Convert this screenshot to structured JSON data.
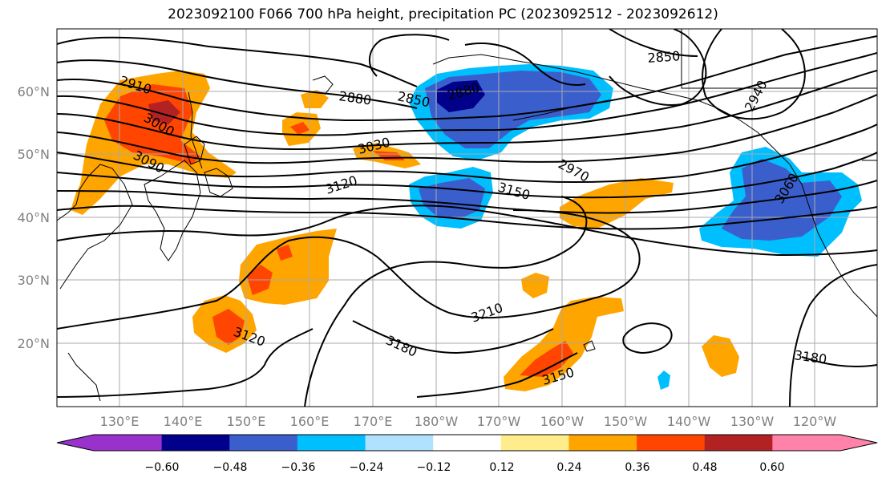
{
  "title": "2023092100 F066 700 hPa height, precipitation PC (2023092512 - 2023092612)",
  "lat_labels": [
    "60°N",
    "50°N",
    "40°N",
    "30°N",
    "20°N"
  ],
  "lon_labels": [
    "130°E",
    "140°E",
    "150°E",
    "160°E",
    "170°E",
    "180°W",
    "170°W",
    "160°W",
    "150°W",
    "140°W",
    "130°W",
    "120°W"
  ],
  "contour_labels": [
    "2850",
    "2880",
    "2910",
    "2940",
    "2970",
    "3000",
    "3030",
    "3060",
    "3090",
    "3120",
    "3150",
    "3180",
    "3210"
  ],
  "colorbar": {
    "tick_labels": [
      "−0.60",
      "−0.48",
      "−0.36",
      "−0.24",
      "−0.12",
      "0.12",
      "0.24",
      "0.36",
      "0.48",
      "0.60"
    ],
    "colors": [
      "#9932cc",
      "#00008b",
      "#3a5fcd",
      "#00bfff",
      "#b0e2ff",
      "#ffffff",
      "#ffec8b",
      "#ffa500",
      "#ff4500",
      "#b22222",
      "#ff82ab"
    ]
  },
  "legend_colors": {
    "neg_strong": "#00008b",
    "neg_mid": "#3a5fcd",
    "neg_light": "#00bfff",
    "pos_light": "#ffec8b",
    "pos_mid": "#ffa500",
    "pos_strong": "#ff4500",
    "pos_darker": "#b22222"
  }
}
